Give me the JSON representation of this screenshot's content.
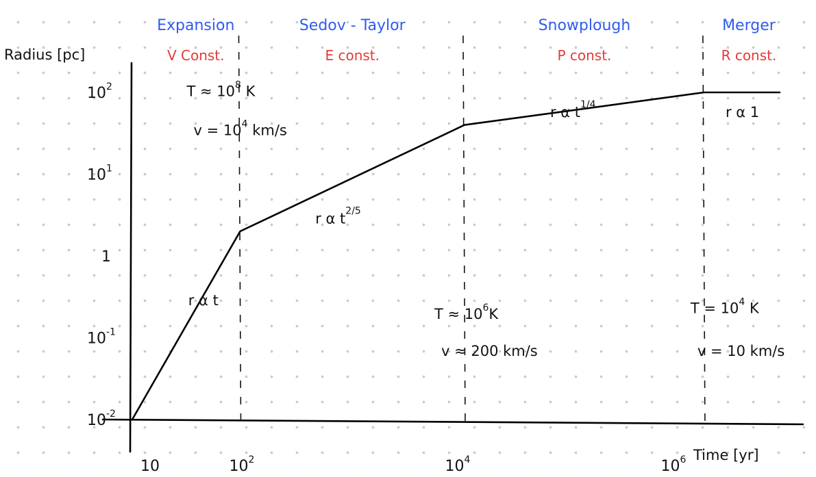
{
  "chart_data": {
    "type": "line",
    "title": "",
    "xlabel": "Time [yr]",
    "ylabel": "Radius [pc]",
    "x_scale": "log",
    "y_scale": "log",
    "xlim": [
      10,
      10000000
    ],
    "ylim": [
      0.01,
      100
    ],
    "x_ticks": [
      {
        "value": 10,
        "label": "10"
      },
      {
        "value": 100,
        "label": "10",
        "exp": "2"
      },
      {
        "value": 10000,
        "label": "10",
        "exp": "4"
      },
      {
        "value": 1000000,
        "label": "10",
        "exp": "6"
      }
    ],
    "y_ticks": [
      {
        "value": 0.01,
        "label": "10",
        "exp": "-2"
      },
      {
        "value": 0.1,
        "label": "10",
        "exp": "-1"
      },
      {
        "value": 1,
        "label": "1",
        "exp": ""
      },
      {
        "value": 10,
        "label": "10",
        "exp": "1"
      },
      {
        "value": 100,
        "label": "10",
        "exp": "2"
      }
    ],
    "series": [
      {
        "points": [
          {
            "x": 10,
            "y": 0.01
          },
          {
            "x": 100,
            "y": 2
          },
          {
            "x": 12000,
            "y": 40
          },
          {
            "x": 2000000,
            "y": 100
          },
          {
            "x": 10000000,
            "y": 100
          }
        ]
      }
    ],
    "phase_boundaries": [
      100,
      12000,
      2000000
    ],
    "phases": [
      {
        "name": "Expansion",
        "constant": "V  Const."
      },
      {
        "name": "Sedov - Taylor",
        "constant": "E  const."
      },
      {
        "name": "Snowplough",
        "constant": "P  const."
      },
      {
        "name": "Merger",
        "constant": "R  const."
      }
    ],
    "annotations": [
      {
        "text": "r α t",
        "sup": ""
      },
      {
        "text": "r α t",
        "sup": "2/5"
      },
      {
        "text": "r α t",
        "sup": "1/4"
      },
      {
        "text": "r α 1",
        "sup": ""
      }
    ],
    "conditions": [
      {
        "T_base": "T ≈ 10",
        "T_exp": "8",
        "T_unit": " K",
        "v_base": "v = 10",
        "v_exp": "4",
        "v_unit": " km/s"
      },
      {
        "T_base": "T ≈ 10",
        "T_exp": "6",
        "T_unit": "K",
        "v_base": "v ≈ 200 km/s",
        "v_exp": "",
        "v_unit": ""
      },
      {
        "T_base": "T = 10",
        "T_exp": "4",
        "T_unit": " K",
        "v_base": "v = 10 km/s",
        "v_exp": "",
        "v_unit": ""
      }
    ],
    "grid": false,
    "legend": "none",
    "colors": {
      "line": "#000000",
      "phase_name": "#2f5bf0",
      "phase_constant": "#e53935",
      "dots": "#c5ccd6"
    }
  }
}
